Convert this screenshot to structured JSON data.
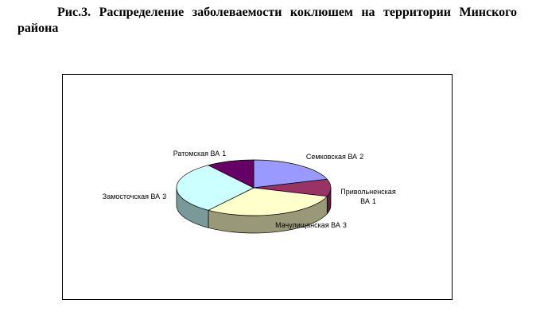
{
  "chart_data": {
    "type": "pie",
    "title": "Рис.3. Распределение заболеваемости коклюшем на территории Минского района",
    "categories": [
      "Семковская ВА",
      "Привольненская ВА",
      "Мачулищанская ВА",
      "Замосточская ВА",
      "Ратомская ВА"
    ],
    "values": [
      2,
      1,
      3,
      3,
      1
    ],
    "colors": [
      "#9999ff",
      "#993366",
      "#ffffcc",
      "#ccffff",
      "#660066"
    ]
  }
}
